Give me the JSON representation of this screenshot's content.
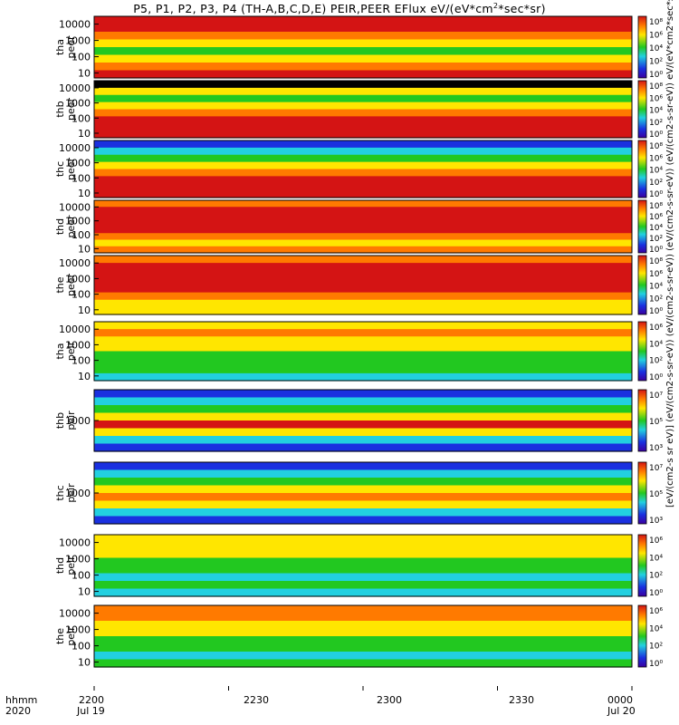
{
  "title": {
    "main": "P5, P1, P2, P3, P4 (TH-A,B,C,D,E) PEIR,PEER EFlux eV/(eV*cm",
    "sup": "2",
    "tail": "*sec*sr)"
  },
  "colorbar": {
    "label": "[eV/(cm2-s sr eV)] (eV/(cm2-s-sr-eV)) (eV/(cm2-s-sr-eV)) (eV/(cm2-s-sr-eV)) (eV/(cm2-s-sr-eV)) eV/(eV*cm2*sec*sr) (eV/(eV*cm2*sec*sr)) (A)",
    "ticks_8": [
      "10⁸",
      "10⁶",
      "10⁴",
      "10²",
      "10⁰"
    ],
    "ticks_7": [
      "10⁷",
      "10⁵",
      "10³"
    ],
    "ticks_6": [
      "10⁶",
      "10⁴",
      "10²",
      "10⁰"
    ]
  },
  "footer": {
    "row1_label": "hhmm",
    "row2_label": "2020",
    "ticks": [
      {
        "top": "2200",
        "bottom": "Jul 19"
      },
      {
        "top": "2230",
        "bottom": ""
      },
      {
        "top": "2300",
        "bottom": ""
      },
      {
        "top": "2330",
        "bottom": ""
      },
      {
        "top": "0000",
        "bottom": "Jul 20"
      }
    ]
  },
  "colors": {
    "red": "#d41414",
    "orange": "#ff7a00",
    "yellow": "#ffe600",
    "green": "#22c820",
    "cyan": "#22d0e0",
    "blue": "#1a30e0",
    "black": "#000000"
  },
  "chart_data": [
    {
      "type": "heatmap",
      "probe": "tha",
      "species": "peer",
      "ylabel_top": "tha",
      "ylabel_bottom": "peer",
      "yticks": [
        "10000",
        "1000",
        "100",
        "10"
      ],
      "yscale": "log",
      "ylim": [
        5,
        30000
      ],
      "bands": [
        "red",
        "red",
        "orange",
        "yellow",
        "green",
        "yellow",
        "orange",
        "red"
      ],
      "colorbar_ticks": "ticks_8"
    },
    {
      "type": "heatmap",
      "probe": "thb",
      "species": "peer",
      "ylabel_top": "thb",
      "ylabel_bottom": "peer",
      "yticks": [
        "10000",
        "1000",
        "100",
        "10"
      ],
      "yscale": "log",
      "ylim": [
        5,
        30000
      ],
      "bands": [
        "black",
        "yellow",
        "green",
        "yellow",
        "orange",
        "red",
        "red",
        "red"
      ],
      "colorbar_ticks": "ticks_8"
    },
    {
      "type": "heatmap",
      "probe": "thc",
      "species": "peer",
      "ylabel_top": "thc",
      "ylabel_bottom": "peer",
      "yticks": [
        "10000",
        "1000",
        "100",
        "10"
      ],
      "yscale": "log",
      "ylim": [
        5,
        30000
      ],
      "bands": [
        "blue",
        "cyan",
        "green",
        "yellow",
        "orange",
        "red",
        "red",
        "red"
      ],
      "colorbar_ticks": "ticks_8"
    },
    {
      "type": "heatmap",
      "probe": "thd",
      "species": "peer",
      "ylabel_top": "thd",
      "ylabel_bottom": "peer",
      "yticks": [
        "10000",
        "1000",
        "100",
        "10"
      ],
      "yscale": "log",
      "ylim": [
        5,
        30000
      ],
      "bands": [
        "orange",
        "red",
        "red",
        "red",
        "red",
        "orange",
        "yellow",
        "orange"
      ],
      "colorbar_ticks": "ticks_8"
    },
    {
      "type": "heatmap",
      "probe": "the",
      "species": "peer",
      "ylabel_top": "the",
      "ylabel_bottom": "peer",
      "yticks": [
        "10000",
        "1000",
        "100",
        "10"
      ],
      "yscale": "log",
      "ylim": [
        5,
        30000
      ],
      "bands": [
        "orange",
        "red",
        "red",
        "red",
        "red",
        "orange",
        "yellow",
        "yellow"
      ],
      "colorbar_ticks": "ticks_8"
    },
    {
      "type": "heatmap",
      "probe": "tha",
      "species": "peir",
      "ylabel_top": "tha",
      "ylabel_bottom": "peir",
      "yticks": [
        "10000",
        "1000",
        "100",
        "10"
      ],
      "yscale": "log",
      "ylim": [
        5,
        30000
      ],
      "bands": [
        "yellow",
        "orange",
        "yellow",
        "yellow",
        "green",
        "green",
        "green",
        "cyan"
      ],
      "colorbar_ticks": "ticks_6"
    },
    {
      "type": "heatmap",
      "probe": "thb",
      "species": "peir",
      "ylabel_top": "thb",
      "ylabel_bottom": "peir",
      "yticks": [
        "1000"
      ],
      "yscale": "log",
      "ylim": [
        5,
        30000
      ],
      "bands": [
        "blue",
        "cyan",
        "green",
        "yellow",
        "red",
        "yellow",
        "cyan",
        "blue"
      ],
      "colorbar_ticks": "ticks_7"
    },
    {
      "type": "heatmap",
      "probe": "thc",
      "species": "peir",
      "ylabel_top": "thc",
      "ylabel_bottom": "peir",
      "yticks": [
        "1000"
      ],
      "yscale": "log",
      "ylim": [
        5,
        30000
      ],
      "bands": [
        "blue",
        "cyan",
        "green",
        "yellow",
        "orange",
        "yellow",
        "cyan",
        "blue"
      ],
      "colorbar_ticks": "ticks_7"
    },
    {
      "type": "heatmap",
      "probe": "thd",
      "species": "peir",
      "ylabel_top": "thd",
      "ylabel_bottom": "peir",
      "yticks": [
        "10000",
        "1000",
        "100",
        "10"
      ],
      "yscale": "log",
      "ylim": [
        5,
        30000
      ],
      "bands": [
        "yellow",
        "yellow",
        "yellow",
        "green",
        "green",
        "cyan",
        "green",
        "cyan"
      ],
      "colorbar_ticks": "ticks_6"
    },
    {
      "type": "heatmap",
      "probe": "the",
      "species": "peir",
      "ylabel_top": "the",
      "ylabel_bottom": "peir",
      "yticks": [
        "10000",
        "1000",
        "100",
        "10"
      ],
      "yscale": "log",
      "ylim": [
        5,
        30000
      ],
      "bands": [
        "orange",
        "orange",
        "yellow",
        "yellow",
        "green",
        "green",
        "cyan",
        "green"
      ],
      "colorbar_ticks": "ticks_6"
    }
  ]
}
